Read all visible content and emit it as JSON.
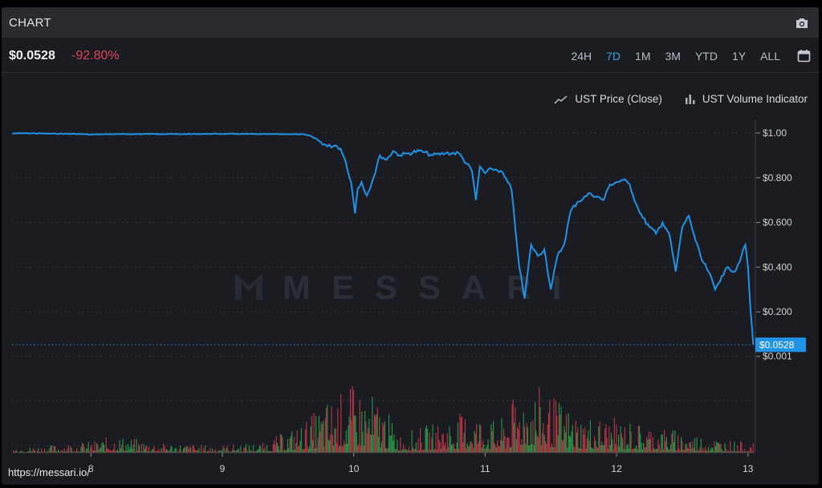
{
  "header": {
    "title": "CHART",
    "camera_icon": "camera-icon"
  },
  "summary": {
    "price": "$0.0528",
    "change": "-92.80%",
    "price_color": "#eef0f3",
    "change_color": "#e0455a"
  },
  "ranges": [
    {
      "label": "24H",
      "active": false
    },
    {
      "label": "7D",
      "active": true
    },
    {
      "label": "1M",
      "active": false
    },
    {
      "label": "3M",
      "active": false
    },
    {
      "label": "YTD",
      "active": false
    },
    {
      "label": "1Y",
      "active": false
    },
    {
      "label": "ALL",
      "active": false
    }
  ],
  "legend": {
    "price_label": "UST Price (Close)",
    "volume_label": "UST Volume Indicator"
  },
  "watermark": "MESSARI",
  "footer": {
    "url": "https://messari.io/"
  },
  "chart_data": {
    "type": "line",
    "title": "",
    "xlabel": "",
    "ylabel": "",
    "x_ticks": [
      "8",
      "9",
      "10",
      "11",
      "12",
      "13"
    ],
    "y_ticks": [
      "$1.00",
      "$0.800",
      "$0.600",
      "$0.400",
      "$0.200",
      "$0.001"
    ],
    "last_value_label": "$0.0528",
    "ylim": [
      0,
      1.05
    ],
    "xlim": [
      7.4,
      13.05
    ],
    "line_color": "#2193e6",
    "volume_up_color": "#2eae4f",
    "volume_down_color": "#d63c4f",
    "grid": "horizontal dotted",
    "series": [
      {
        "x": [
          7.4,
          7.5,
          7.7,
          7.9,
          8.0,
          8.1,
          8.3,
          8.5,
          8.7,
          8.9,
          9.1,
          9.3,
          9.5,
          9.62,
          9.68,
          9.75,
          9.8,
          9.86,
          9.9,
          9.94,
          9.98,
          10.01,
          10.03,
          10.06,
          10.1,
          10.15,
          10.2,
          10.25,
          10.3,
          10.35,
          10.42,
          10.5,
          10.6,
          10.7,
          10.8,
          10.9,
          10.93,
          10.96,
          11.0,
          11.05,
          11.12,
          11.2,
          11.26,
          11.3,
          11.35,
          11.4,
          11.45,
          11.5,
          11.55,
          11.6,
          11.65,
          11.7,
          11.8,
          11.9,
          11.95,
          12.0,
          12.05,
          12.1,
          12.15,
          12.2,
          12.25,
          12.3,
          12.35,
          12.4,
          12.45,
          12.5,
          12.55,
          12.6,
          12.65,
          12.7,
          12.75,
          12.8,
          12.85,
          12.9,
          12.95,
          12.98,
          13.0,
          13.02,
          13.04
        ],
        "values": [
          0.998,
          0.999,
          0.997,
          0.996,
          0.993,
          0.995,
          0.995,
          0.996,
          0.995,
          0.996,
          0.996,
          0.995,
          0.995,
          0.994,
          0.985,
          0.96,
          0.94,
          0.945,
          0.93,
          0.87,
          0.78,
          0.64,
          0.75,
          0.78,
          0.72,
          0.8,
          0.9,
          0.88,
          0.92,
          0.9,
          0.91,
          0.92,
          0.9,
          0.91,
          0.91,
          0.83,
          0.7,
          0.85,
          0.82,
          0.84,
          0.83,
          0.75,
          0.4,
          0.26,
          0.5,
          0.45,
          0.48,
          0.3,
          0.45,
          0.5,
          0.65,
          0.69,
          0.73,
          0.7,
          0.77,
          0.78,
          0.79,
          0.77,
          0.68,
          0.62,
          0.58,
          0.55,
          0.6,
          0.55,
          0.38,
          0.58,
          0.63,
          0.52,
          0.43,
          0.38,
          0.3,
          0.36,
          0.4,
          0.38,
          0.45,
          0.5,
          0.4,
          0.2,
          0.0528
        ]
      }
    ],
    "volume_profile": [
      {
        "x": 7.4,
        "level": 0.05
      },
      {
        "x": 7.7,
        "level": 0.08
      },
      {
        "x": 8.0,
        "level": 0.12
      },
      {
        "x": 8.2,
        "level": 0.18
      },
      {
        "x": 8.5,
        "level": 0.1
      },
      {
        "x": 8.9,
        "level": 0.08
      },
      {
        "x": 9.3,
        "level": 0.1
      },
      {
        "x": 9.6,
        "level": 0.3
      },
      {
        "x": 9.8,
        "level": 0.55
      },
      {
        "x": 10.0,
        "level": 0.7
      },
      {
        "x": 10.2,
        "level": 0.55
      },
      {
        "x": 10.35,
        "level": 0.2
      },
      {
        "x": 10.6,
        "level": 0.3
      },
      {
        "x": 10.9,
        "level": 0.45
      },
      {
        "x": 11.1,
        "level": 0.3
      },
      {
        "x": 11.3,
        "level": 0.75
      },
      {
        "x": 11.5,
        "level": 0.6
      },
      {
        "x": 11.7,
        "level": 0.4
      },
      {
        "x": 12.0,
        "level": 0.35
      },
      {
        "x": 12.3,
        "level": 0.28
      },
      {
        "x": 12.6,
        "level": 0.2
      },
      {
        "x": 12.9,
        "level": 0.12
      },
      {
        "x": 13.04,
        "level": 0.1
      }
    ]
  }
}
